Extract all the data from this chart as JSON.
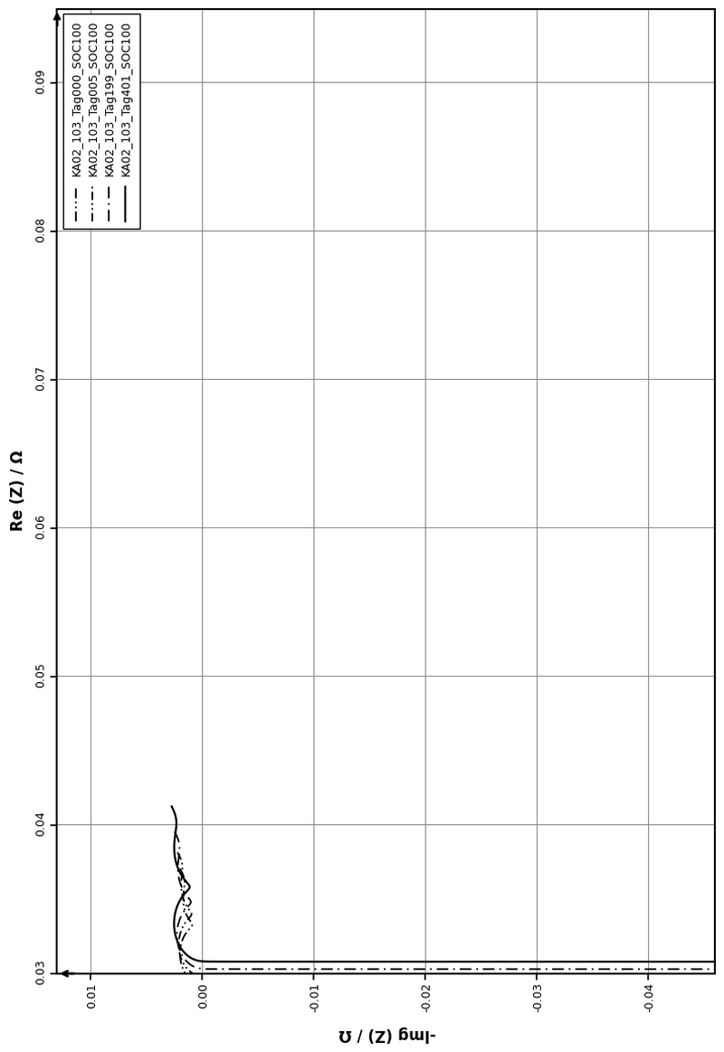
{
  "xlabel": "Re (Z) / Ω",
  "ylabel": "-lmg (Z) / Ω",
  "xlim": [
    0.03,
    0.095
  ],
  "ylim": [
    -0.046,
    0.013
  ],
  "xticks": [
    0.03,
    0.04,
    0.05,
    0.06,
    0.07,
    0.08,
    0.09
  ],
  "yticks": [
    0.01,
    0,
    -0.01,
    -0.02,
    -0.03,
    -0.04
  ],
  "series": [
    {
      "label": "KA02_103_Tag000_SOC100",
      "color": "#000000",
      "linewidth": 1.3
    },
    {
      "label": "KA02_103_Tag005_SOC100",
      "color": "#000000",
      "linewidth": 1.3
    },
    {
      "label": "KA02_103_Tag199_SOC100",
      "color": "#000000",
      "linewidth": 1.3
    },
    {
      "label": "KA02_103_Tag401_SOC100",
      "color": "#000000",
      "linewidth": 1.6
    }
  ],
  "background_color": "#ffffff",
  "grid_color": "#888888",
  "legend_labels_rotated": true,
  "curve_params": [
    {
      "r0": 0.0293,
      "r_sei": 0.0022,
      "c_sei": 600,
      "r_ct": 0.0038,
      "c_dl": 5.0,
      "sigma": 0.00045,
      "L": 2e-07
    },
    {
      "r0": 0.0298,
      "r_sei": 0.0024,
      "c_sei": 580,
      "r_ct": 0.004,
      "c_dl": 4.8,
      "sigma": 0.0005,
      "L": 2e-07
    },
    {
      "r0": 0.0303,
      "r_sei": 0.0028,
      "c_sei": 540,
      "r_ct": 0.0043,
      "c_dl": 4.3,
      "sigma": 0.00055,
      "L": 2e-07
    },
    {
      "r0": 0.0308,
      "r_sei": 0.0033,
      "c_sei": 480,
      "r_ct": 0.0048,
      "c_dl": 3.8,
      "sigma": 0.0006,
      "L": 2e-07
    }
  ]
}
